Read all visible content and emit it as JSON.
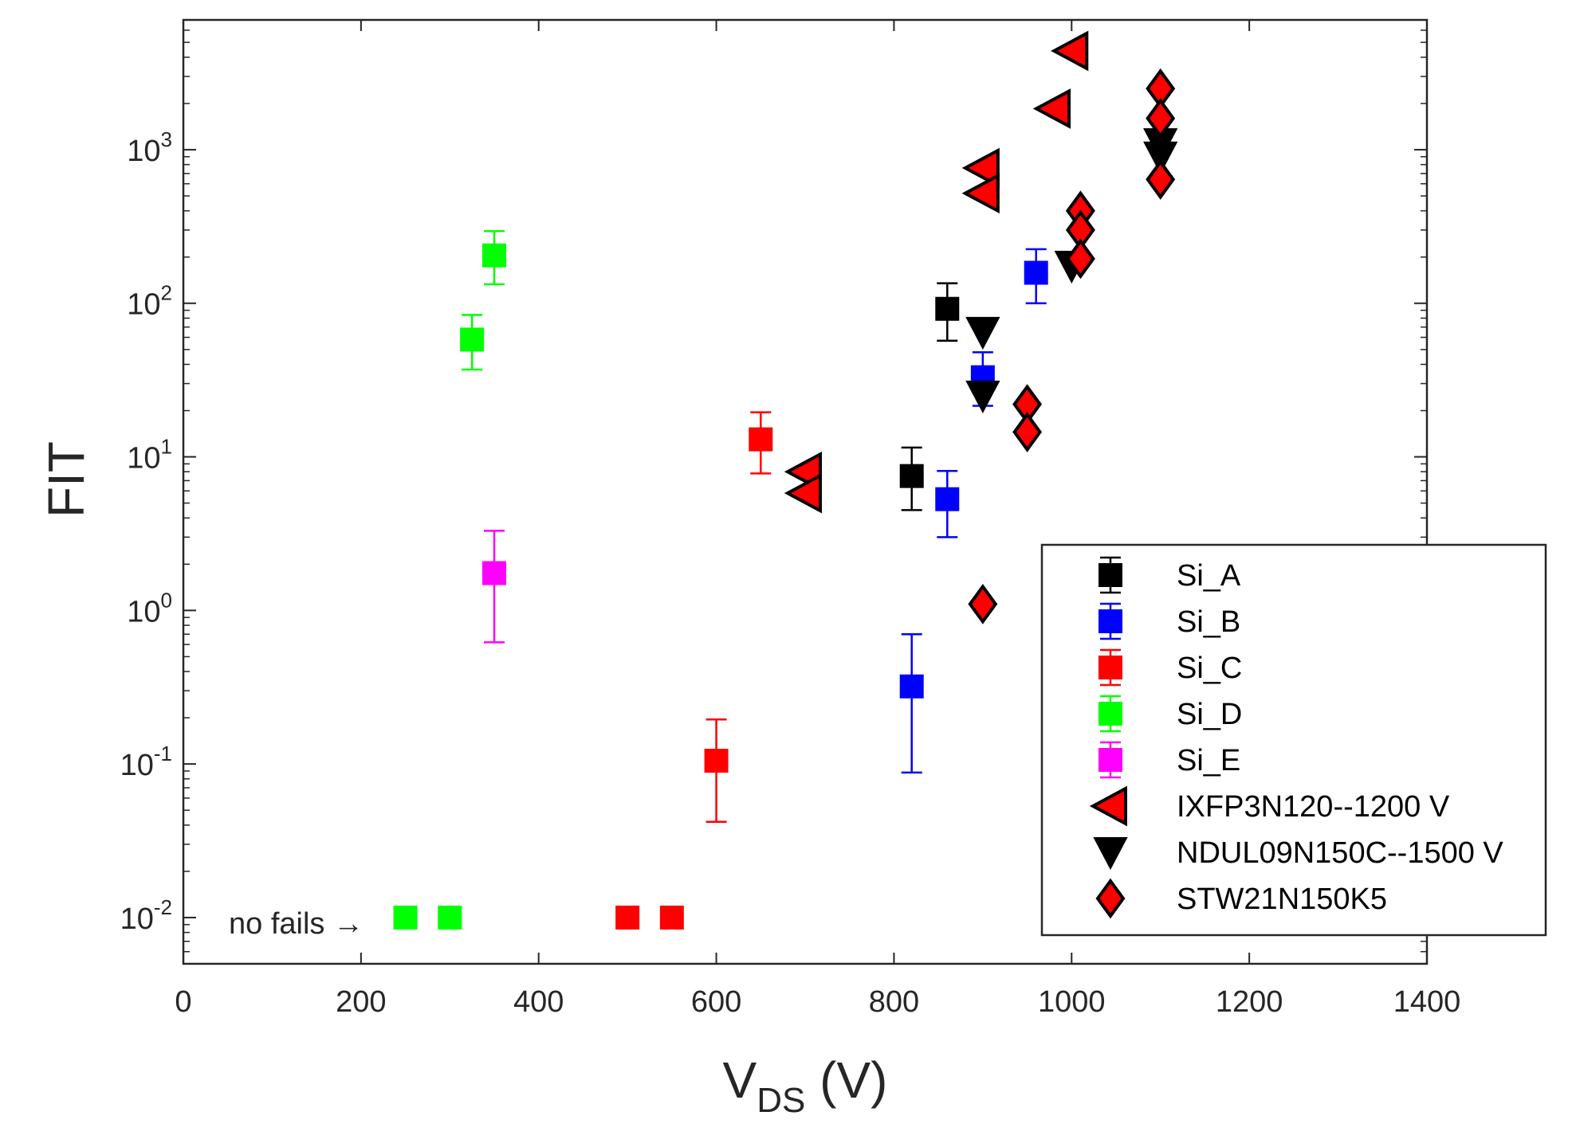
{
  "chart_data": {
    "type": "scatter",
    "title": "",
    "xlabel": {
      "main": "V",
      "sub": "DS",
      "unit": " (V)"
    },
    "ylabel": "FIT",
    "x_range": [
      0,
      1400
    ],
    "y_range": [
      0.005,
      7000
    ],
    "y_scale": "log",
    "x_ticks": [
      0,
      200,
      400,
      600,
      800,
      1000,
      1200,
      1400
    ],
    "y_ticks": [
      {
        "value": 0.01,
        "base": "10",
        "exp": "-2"
      },
      {
        "value": 0.1,
        "base": "10",
        "exp": "-1"
      },
      {
        "value": 1,
        "base": "10",
        "exp": "0"
      },
      {
        "value": 10,
        "base": "10",
        "exp": "1"
      },
      {
        "value": 100,
        "base": "10",
        "exp": "2"
      },
      {
        "value": 1000,
        "base": "10",
        "exp": "3"
      }
    ],
    "annotation": {
      "text": "no fails →",
      "x": 250,
      "y": 0.01
    },
    "legend_position": "bottom-right",
    "series": [
      {
        "name": "Si_A",
        "marker": "square",
        "color": "#000000",
        "errorbars": true,
        "points": [
          {
            "x": 820,
            "y": 7.5,
            "lo": 4.5,
            "hi": 11.5
          },
          {
            "x": 860,
            "y": 92,
            "lo": 57,
            "hi": 135
          }
        ]
      },
      {
        "name": "Si_B",
        "marker": "square",
        "color": "#0000ff",
        "errorbars": true,
        "points": [
          {
            "x": 820,
            "y": 0.32,
            "lo": 0.088,
            "hi": 0.7
          },
          {
            "x": 860,
            "y": 5.3,
            "lo": 3.0,
            "hi": 8.1
          },
          {
            "x": 900,
            "y": 33,
            "lo": 21.5,
            "hi": 48
          },
          {
            "x": 960,
            "y": 158,
            "lo": 100,
            "hi": 225
          }
        ]
      },
      {
        "name": "Si_C",
        "marker": "square",
        "color": "#ff0000",
        "errorbars": true,
        "points": [
          {
            "x": 500,
            "y": 0.01
          },
          {
            "x": 550,
            "y": 0.01
          },
          {
            "x": 600,
            "y": 0.105,
            "lo": 0.042,
            "hi": 0.195
          },
          {
            "x": 650,
            "y": 13,
            "lo": 7.8,
            "hi": 19.5
          }
        ]
      },
      {
        "name": "Si_D",
        "marker": "square",
        "color": "#00ff00",
        "errorbars": true,
        "points": [
          {
            "x": 250,
            "y": 0.01
          },
          {
            "x": 300,
            "y": 0.01
          },
          {
            "x": 325,
            "y": 58,
            "lo": 37,
            "hi": 84
          },
          {
            "x": 350,
            "y": 205,
            "lo": 133,
            "hi": 295
          }
        ]
      },
      {
        "name": "Si_E",
        "marker": "square",
        "color": "#ff00ff",
        "errorbars": true,
        "points": [
          {
            "x": 350,
            "y": 1.75,
            "lo": 0.62,
            "hi": 3.3
          }
        ]
      },
      {
        "name": "IXFP3N120--1200 V",
        "marker": "triangle-left",
        "color": "#ff0000",
        "errorbars": false,
        "points": [
          {
            "x": 700,
            "y": 8
          },
          {
            "x": 700,
            "y": 5.8
          },
          {
            "x": 900,
            "y": 760
          },
          {
            "x": 900,
            "y": 520
          },
          {
            "x": 980,
            "y": 1850
          },
          {
            "x": 1000,
            "y": 4400
          }
        ]
      },
      {
        "name": "NDUL09N150C--1500 V",
        "marker": "triangle-down",
        "color": "#000000",
        "errorbars": false,
        "points": [
          {
            "x": 900,
            "y": 65
          },
          {
            "x": 900,
            "y": 25
          },
          {
            "x": 1000,
            "y": 175
          },
          {
            "x": 1100,
            "y": 1100
          },
          {
            "x": 1100,
            "y": 900
          }
        ]
      },
      {
        "name": "STW21N150K5",
        "marker": "diamond",
        "color": "#ff0000",
        "errorbars": false,
        "points": [
          {
            "x": 900,
            "y": 1.1
          },
          {
            "x": 950,
            "y": 22
          },
          {
            "x": 950,
            "y": 14.5
          },
          {
            "x": 1010,
            "y": 400
          },
          {
            "x": 1010,
            "y": 300
          },
          {
            "x": 1010,
            "y": 195
          },
          {
            "x": 1100,
            "y": 2500
          },
          {
            "x": 1100,
            "y": 1600
          },
          {
            "x": 1100,
            "y": 640
          }
        ]
      }
    ]
  }
}
